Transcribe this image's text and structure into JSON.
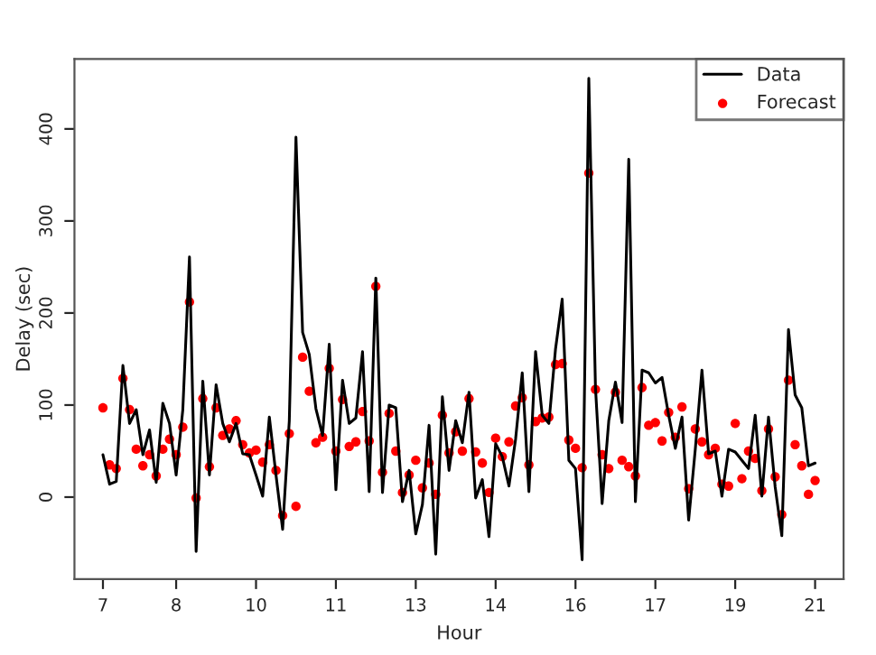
{
  "chart_data": {
    "type": "line",
    "xlabel": "Hour",
    "ylabel": "Delay (sec)",
    "categories": [
      "7",
      null,
      null,
      null,
      null,
      null,
      null,
      null,
      null,
      null,
      null,
      "8",
      null,
      null,
      null,
      null,
      null,
      null,
      null,
      null,
      null,
      null,
      null,
      "10",
      null,
      null,
      null,
      null,
      null,
      null,
      null,
      null,
      null,
      null,
      null,
      "11",
      null,
      null,
      null,
      null,
      null,
      null,
      null,
      null,
      null,
      null,
      null,
      "13",
      null,
      null,
      null,
      null,
      null,
      null,
      null,
      null,
      null,
      null,
      null,
      "14",
      null,
      null,
      null,
      null,
      null,
      null,
      null,
      null,
      null,
      null,
      null,
      "16",
      null,
      null,
      null,
      null,
      null,
      null,
      null,
      null,
      null,
      null,
      null,
      "17",
      null,
      null,
      null,
      null,
      null,
      null,
      null,
      null,
      null,
      null,
      null,
      "19",
      null,
      null,
      null,
      null,
      null,
      null,
      null,
      null,
      null,
      null,
      null,
      "21"
    ],
    "ylim": [
      -89,
      476
    ],
    "yticks": [
      0,
      100,
      200,
      300,
      400
    ],
    "grid": false,
    "legend": "top right",
    "series": [
      {
        "name": "Data",
        "color": "#000000",
        "line_style": "solid",
        "values": [
          46,
          14,
          17,
          143,
          80,
          95,
          46,
          73,
          16,
          102,
          80,
          24,
          95,
          261,
          -59,
          126,
          24,
          122,
          80,
          60,
          80,
          47,
          46,
          24,
          1,
          87,
          24,
          -35,
          83,
          391,
          179,
          155,
          96,
          67,
          166,
          8,
          127,
          80,
          86,
          158,
          6,
          238,
          5,
          100,
          97,
          -5,
          29,
          -40,
          -8,
          78,
          -62,
          109,
          29,
          83,
          59,
          114,
          -1,
          19,
          -43,
          58,
          44,
          12,
          63,
          135,
          6,
          158,
          89,
          80,
          161,
          215,
          40,
          31,
          -68,
          455,
          119,
          -7,
          83,
          125,
          81,
          367,
          -5,
          138,
          135,
          124,
          130,
          89,
          53,
          87,
          -25,
          52,
          138,
          47,
          50,
          1,
          52,
          49,
          40,
          31,
          89,
          1,
          87,
          11,
          -42,
          182,
          111,
          97,
          34,
          37
        ]
      },
      {
        "name": "Forecast",
        "type": "scatter",
        "color": "#ff0000",
        "marker": "circle",
        "values": [
          97,
          35,
          31,
          129,
          95,
          52,
          34,
          46,
          23,
          52,
          63,
          46,
          76,
          212,
          -1,
          107,
          33,
          97,
          67,
          74,
          83,
          57,
          48,
          51,
          38,
          57,
          29,
          -20,
          69,
          -10,
          152,
          115,
          59,
          65,
          140,
          50,
          106,
          55,
          60,
          93,
          61,
          229,
          27,
          91,
          50,
          5,
          24,
          40,
          10,
          37,
          3,
          89,
          48,
          71,
          50,
          107,
          49,
          37,
          5,
          64,
          44,
          60,
          99,
          108,
          35,
          82,
          86,
          87,
          144,
          145,
          62,
          53,
          32,
          352,
          117,
          46,
          31,
          114,
          40,
          33,
          23,
          119,
          78,
          81,
          61,
          92,
          65,
          98,
          9,
          74,
          60,
          46,
          53,
          14,
          12,
          80,
          20,
          50,
          42,
          7,
          74,
          22,
          -19,
          127,
          57,
          34,
          3,
          18
        ]
      }
    ]
  }
}
